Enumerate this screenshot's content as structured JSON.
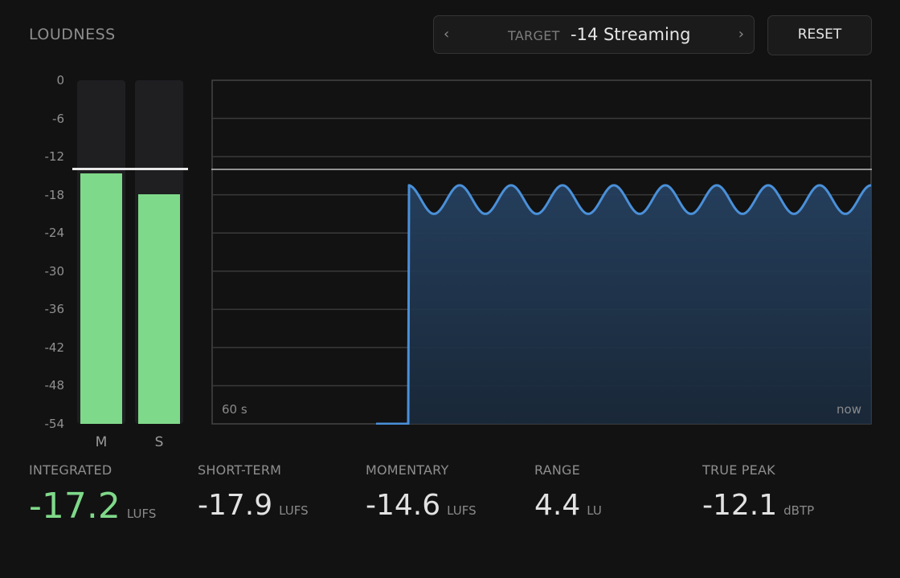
{
  "header": {
    "title": "LOUDNESS",
    "target_label": "TARGET",
    "target_value": "-14 Streaming",
    "prev_symbol": "‹",
    "next_symbol": "›",
    "reset_label": "RESET"
  },
  "meter_scale": {
    "ticks": [
      "0",
      "-6",
      "-12",
      "-18",
      "-24",
      "-30",
      "-36",
      "-42",
      "-48",
      "-54"
    ],
    "min": -54,
    "max": 0
  },
  "meters": [
    {
      "label": "M",
      "level": -14.6
    },
    {
      "label": "S",
      "level": -17.9
    }
  ],
  "target_level": -14,
  "graph": {
    "left_label": "60 s",
    "right_label": "now",
    "line_color": "#4a90d9",
    "fill_color": "#1f3550",
    "grid_color": "#3a3a3a",
    "target_line_color": "#bdbdbd",
    "series_description_values": {
      "baseline": -54,
      "peak": -16.5,
      "trough": -21,
      "onset_fraction": 0.3,
      "cycles": 9
    }
  },
  "stats": [
    {
      "label": "INTEGRATED",
      "value": "-17.2",
      "unit": "LUFS",
      "accent": true
    },
    {
      "label": "SHORT-TERM",
      "value": "-17.9",
      "unit": "LUFS",
      "accent": false
    },
    {
      "label": "MOMENTARY",
      "value": "-14.6",
      "unit": "LUFS",
      "accent": false
    },
    {
      "label": "RANGE",
      "value": "4.4",
      "unit": "LU",
      "accent": false
    },
    {
      "label": "TRUE PEAK",
      "value": "-12.1",
      "unit": "dBTP",
      "accent": false
    }
  ],
  "colors": {
    "meter_fill": "#7fd98a",
    "accent": "#7fd98a"
  }
}
